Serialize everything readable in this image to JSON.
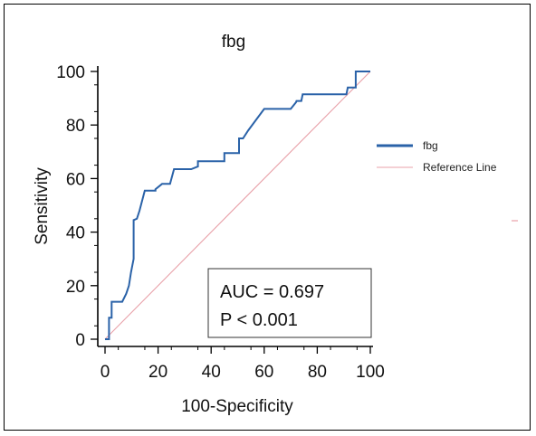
{
  "chart_data": {
    "type": "line",
    "title": "fbg",
    "xlabel": "100-Specificity",
    "ylabel": "Sensitivity",
    "xlim": [
      0,
      100
    ],
    "ylim": [
      0,
      100
    ],
    "xticks": [
      0,
      20,
      40,
      60,
      80,
      100
    ],
    "yticks": [
      0,
      20,
      40,
      60,
      80,
      100
    ],
    "grid": false,
    "legend_position": "right",
    "series": [
      {
        "name": "fbg",
        "color": "#2a62a8",
        "x": [
          0,
          1.5,
          1.5,
          2.5,
          2.5,
          6.5,
          8,
          9,
          9.8,
          10.8,
          10.8,
          12,
          13,
          15,
          19,
          19,
          21.5,
          21.5,
          24.5,
          26,
          26,
          32.5,
          35,
          35,
          44.5,
          45,
          45,
          50,
          50.5,
          50.5,
          52,
          54,
          60,
          60.5,
          69.5,
          70,
          72,
          72.2,
          74,
          74.5,
          91,
          91.5,
          94,
          94.5,
          94.5,
          100
        ],
        "y": [
          0,
          0,
          8,
          8,
          14,
          14,
          17,
          20,
          25,
          30,
          44.5,
          45,
          48,
          55.5,
          55.5,
          56,
          58,
          58,
          58,
          63.5,
          63.5,
          63.5,
          64.5,
          66.5,
          66.5,
          66.5,
          69.5,
          69.5,
          69.5,
          75,
          75,
          78,
          86,
          86,
          86,
          86,
          88.5,
          89,
          89,
          91.5,
          91.5,
          94,
          94,
          94,
          100,
          100
        ]
      },
      {
        "name": "Reference Line",
        "color": "#e8a0a8",
        "x": [
          0,
          100
        ],
        "y": [
          0,
          100
        ]
      }
    ],
    "annotation": {
      "line1": "AUC = 0.697",
      "line2": "P < 0.001"
    }
  }
}
